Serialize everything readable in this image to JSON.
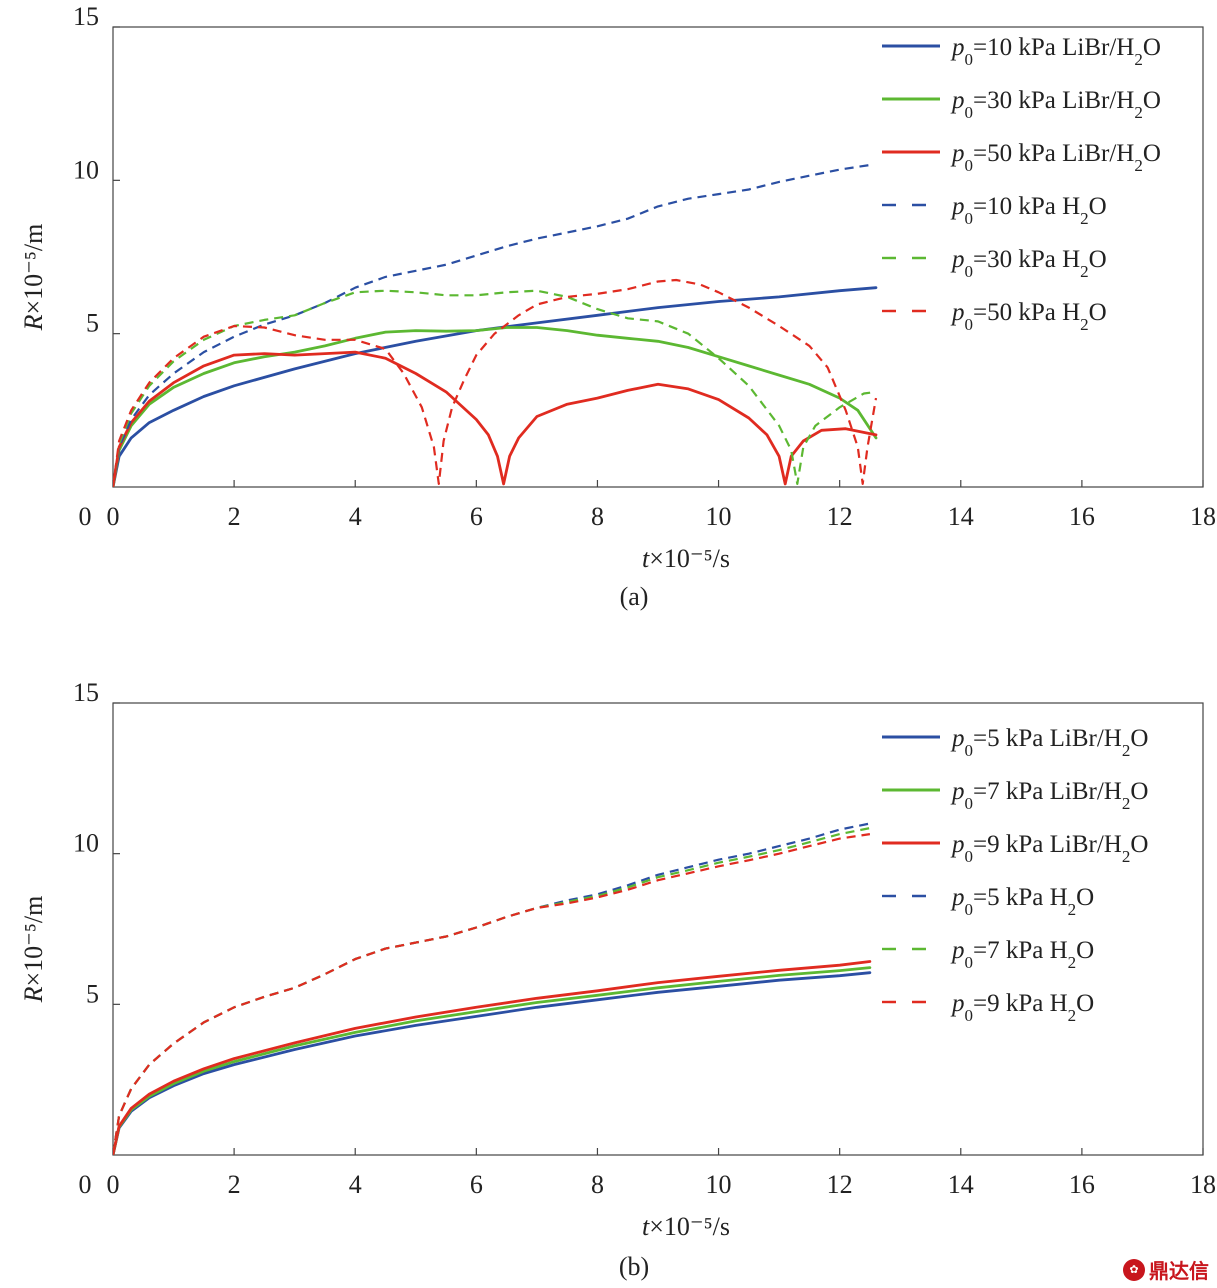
{
  "chart_data": [
    {
      "type": "line",
      "caption": "(a)",
      "xlabel": "t×10⁻⁵/s",
      "ylabel": "R×10⁻⁵/m",
      "xlim": [
        0,
        18
      ],
      "ylim": [
        0,
        15
      ],
      "xticks": [
        0,
        2,
        4,
        6,
        8,
        10,
        12,
        14,
        16,
        18
      ],
      "yticks": [
        5,
        10,
        15
      ],
      "legend_position": "top-right",
      "series": [
        {
          "name": "p0=10 kPa LiBr/H2O",
          "color": "#2b4fa3",
          "style": "solid",
          "x": [
            0,
            0.1,
            0.3,
            0.6,
            1,
            1.5,
            2,
            3,
            4,
            5,
            6,
            7,
            8,
            9,
            10,
            11,
            12,
            12.6
          ],
          "y": [
            0,
            1.0,
            1.6,
            2.1,
            2.5,
            2.95,
            3.3,
            3.85,
            4.35,
            4.75,
            5.1,
            5.35,
            5.6,
            5.85,
            6.05,
            6.2,
            6.4,
            6.5
          ]
        },
        {
          "name": "p0=30 kPa LiBr/H2O",
          "color": "#5cb832",
          "style": "solid",
          "x": [
            0,
            0.1,
            0.3,
            0.6,
            1,
            1.5,
            2,
            2.5,
            3,
            3.5,
            4,
            4.5,
            5,
            5.5,
            6,
            6.5,
            7,
            7.5,
            8,
            8.5,
            9,
            9.5,
            10,
            10.5,
            11,
            11.5,
            12,
            12.3,
            12.6
          ],
          "y": [
            0,
            1.2,
            2.0,
            2.7,
            3.25,
            3.7,
            4.05,
            4.25,
            4.4,
            4.6,
            4.85,
            5.05,
            5.1,
            5.08,
            5.1,
            5.2,
            5.2,
            5.1,
            4.95,
            4.85,
            4.75,
            4.55,
            4.25,
            3.95,
            3.65,
            3.35,
            2.9,
            2.5,
            1.6
          ]
        },
        {
          "name": "p0=50 kPa LiBr/H2O",
          "color": "#e02b20",
          "style": "solid",
          "x": [
            0,
            0.1,
            0.3,
            0.6,
            1,
            1.5,
            2,
            2.5,
            3,
            3.5,
            4,
            4.5,
            5,
            5.5,
            6,
            6.2,
            6.35,
            6.45,
            6.55,
            6.7,
            7,
            7.5,
            8,
            8.5,
            9,
            9.5,
            10,
            10.5,
            10.8,
            11.0,
            11.1,
            11.2,
            11.4,
            11.7,
            12.1,
            12.6
          ],
          "y": [
            0,
            1.3,
            2.1,
            2.8,
            3.4,
            3.95,
            4.3,
            4.35,
            4.3,
            4.35,
            4.4,
            4.2,
            3.7,
            3.1,
            2.2,
            1.7,
            1.0,
            0.1,
            1.0,
            1.6,
            2.3,
            2.7,
            2.9,
            3.15,
            3.35,
            3.2,
            2.85,
            2.25,
            1.7,
            1.0,
            0.1,
            1.0,
            1.5,
            1.85,
            1.9,
            1.7
          ]
        },
        {
          "name": "p0=10 kPa H2O",
          "color": "#2b4fa3",
          "style": "dashed",
          "x": [
            0,
            0.1,
            0.3,
            0.6,
            1,
            1.5,
            2,
            2.5,
            3,
            3.5,
            4,
            4.5,
            5,
            5.5,
            6,
            6.5,
            7,
            7.5,
            8,
            8.5,
            9,
            9.5,
            10,
            10.5,
            11,
            11.5,
            12,
            12.5
          ],
          "y": [
            0,
            1.3,
            2.2,
            3.0,
            3.7,
            4.4,
            4.9,
            5.3,
            5.6,
            6.0,
            6.5,
            6.85,
            7.05,
            7.25,
            7.55,
            7.85,
            8.1,
            8.3,
            8.5,
            8.75,
            9.15,
            9.4,
            9.55,
            9.7,
            9.95,
            10.15,
            10.35,
            10.5
          ]
        },
        {
          "name": "p0=30 kPa H2O",
          "color": "#5cb832",
          "style": "dashed",
          "x": [
            0,
            0.1,
            0.3,
            0.6,
            1,
            1.5,
            2,
            2.5,
            3,
            3.5,
            4,
            4.5,
            5,
            5.5,
            6,
            6.5,
            7,
            7.5,
            8,
            8.5,
            9,
            9.5,
            10,
            10.5,
            11,
            11.2,
            11.3,
            11.4,
            11.6,
            12,
            12.4,
            12.6
          ],
          "y": [
            0,
            1.4,
            2.4,
            3.3,
            4.1,
            4.8,
            5.25,
            5.45,
            5.6,
            6.0,
            6.35,
            6.4,
            6.35,
            6.25,
            6.25,
            6.35,
            6.4,
            6.2,
            5.8,
            5.5,
            5.4,
            5.0,
            4.2,
            3.3,
            2.0,
            1.2,
            0.1,
            1.3,
            2.0,
            2.6,
            3.05,
            3.1
          ]
        },
        {
          "name": "p0=50 kPa H2O",
          "color": "#e02b20",
          "style": "dashed",
          "x": [
            0,
            0.1,
            0.3,
            0.6,
            1,
            1.5,
            2,
            2.5,
            3,
            3.5,
            4,
            4.5,
            4.8,
            5.1,
            5.3,
            5.38,
            5.46,
            5.6,
            5.8,
            6,
            6.3,
            6.7,
            7,
            7.5,
            8,
            8.5,
            9,
            9.3,
            9.7,
            10,
            10.5,
            11,
            11.5,
            11.8,
            12.1,
            12.3,
            12.38,
            12.46,
            12.6
          ],
          "y": [
            0,
            1.5,
            2.5,
            3.4,
            4.2,
            4.9,
            5.25,
            5.2,
            4.95,
            4.8,
            4.8,
            4.5,
            3.7,
            2.6,
            1.3,
            0.1,
            1.5,
            2.6,
            3.5,
            4.3,
            5.0,
            5.6,
            5.95,
            6.2,
            6.3,
            6.45,
            6.7,
            6.75,
            6.6,
            6.35,
            5.85,
            5.25,
            4.6,
            3.9,
            2.5,
            1.3,
            0.1,
            1.3,
            2.9
          ]
        }
      ]
    },
    {
      "type": "line",
      "caption": "(b)",
      "xlabel": "t×10⁻⁵/s",
      "ylabel": "R×10⁻⁵/m",
      "xlim": [
        0,
        18
      ],
      "ylim": [
        0,
        15
      ],
      "xticks": [
        0,
        2,
        4,
        6,
        8,
        10,
        12,
        14,
        16,
        18
      ],
      "yticks": [
        5,
        10,
        15
      ],
      "legend_position": "top-right",
      "series": [
        {
          "name": "p0=5 kPa LiBr/H2O",
          "color": "#2b4fa3",
          "style": "solid",
          "x": [
            0,
            0.1,
            0.3,
            0.6,
            1,
            1.5,
            2,
            3,
            4,
            5,
            6,
            7,
            8,
            9,
            10,
            11,
            12,
            12.5
          ],
          "y": [
            0,
            0.9,
            1.45,
            1.9,
            2.3,
            2.7,
            3.0,
            3.5,
            3.95,
            4.3,
            4.6,
            4.9,
            5.15,
            5.4,
            5.6,
            5.8,
            5.95,
            6.05
          ]
        },
        {
          "name": "p0=7 kPa LiBr/H2O",
          "color": "#5cb832",
          "style": "solid",
          "x": [
            0,
            0.1,
            0.3,
            0.6,
            1,
            1.5,
            2,
            3,
            4,
            5,
            6,
            7,
            8,
            9,
            10,
            11,
            12,
            12.5
          ],
          "y": [
            0,
            0.93,
            1.5,
            1.95,
            2.37,
            2.78,
            3.1,
            3.62,
            4.07,
            4.45,
            4.76,
            5.06,
            5.3,
            5.55,
            5.76,
            5.96,
            6.12,
            6.22
          ]
        },
        {
          "name": "p0=9 kPa LiBr/H2O",
          "color": "#e02b20",
          "style": "solid",
          "x": [
            0,
            0.1,
            0.3,
            0.6,
            1,
            1.5,
            2,
            3,
            4,
            5,
            6,
            7,
            8,
            9,
            10,
            11,
            12,
            12.5
          ],
          "y": [
            0,
            0.96,
            1.55,
            2.02,
            2.45,
            2.86,
            3.2,
            3.72,
            4.2,
            4.58,
            4.9,
            5.2,
            5.45,
            5.72,
            5.93,
            6.13,
            6.3,
            6.42
          ]
        },
        {
          "name": "p0=5 kPa H2O",
          "color": "#2b4fa3",
          "style": "dashed",
          "x": [
            0,
            0.1,
            0.3,
            0.6,
            1,
            1.5,
            2,
            2.5,
            3,
            3.5,
            4,
            4.5,
            5,
            5.5,
            6,
            6.5,
            7,
            7.5,
            8,
            8.5,
            9,
            9.5,
            10,
            10.5,
            11,
            11.5,
            12,
            12.5
          ],
          "y": [
            0,
            1.3,
            2.2,
            3.0,
            3.7,
            4.4,
            4.9,
            5.25,
            5.55,
            6.0,
            6.5,
            6.85,
            7.05,
            7.25,
            7.55,
            7.9,
            8.2,
            8.45,
            8.65,
            8.95,
            9.3,
            9.55,
            9.8,
            10.0,
            10.25,
            10.5,
            10.8,
            11.0
          ]
        },
        {
          "name": "p0=7 kPa H2O",
          "color": "#5cb832",
          "style": "dashed",
          "x": [
            0,
            0.1,
            0.3,
            0.6,
            1,
            1.5,
            2,
            2.5,
            3,
            3.5,
            4,
            4.5,
            5,
            5.5,
            6,
            6.5,
            7,
            7.5,
            8,
            8.5,
            9,
            9.5,
            10,
            10.5,
            11,
            11.5,
            12,
            12.5
          ],
          "y": [
            0,
            1.3,
            2.2,
            3.0,
            3.7,
            4.4,
            4.9,
            5.25,
            5.55,
            6.0,
            6.5,
            6.85,
            7.05,
            7.25,
            7.55,
            7.9,
            8.2,
            8.4,
            8.6,
            8.88,
            9.22,
            9.45,
            9.7,
            9.9,
            10.12,
            10.38,
            10.65,
            10.85
          ]
        },
        {
          "name": "p0=9 kPa H2O",
          "color": "#e02b20",
          "style": "dashed",
          "x": [
            0,
            0.1,
            0.3,
            0.6,
            1,
            1.5,
            2,
            2.5,
            3,
            3.5,
            4,
            4.5,
            5,
            5.5,
            6,
            6.5,
            7,
            7.5,
            8,
            8.5,
            9,
            9.5,
            10,
            10.5,
            11,
            11.5,
            12,
            12.5
          ],
          "y": [
            0,
            1.3,
            2.2,
            3.0,
            3.7,
            4.4,
            4.9,
            5.25,
            5.55,
            6.0,
            6.5,
            6.85,
            7.05,
            7.25,
            7.55,
            7.9,
            8.2,
            8.35,
            8.55,
            8.8,
            9.12,
            9.35,
            9.58,
            9.78,
            10.0,
            10.25,
            10.5,
            10.65
          ]
        }
      ]
    }
  ],
  "watermark": {
    "text": "鼎达信"
  }
}
